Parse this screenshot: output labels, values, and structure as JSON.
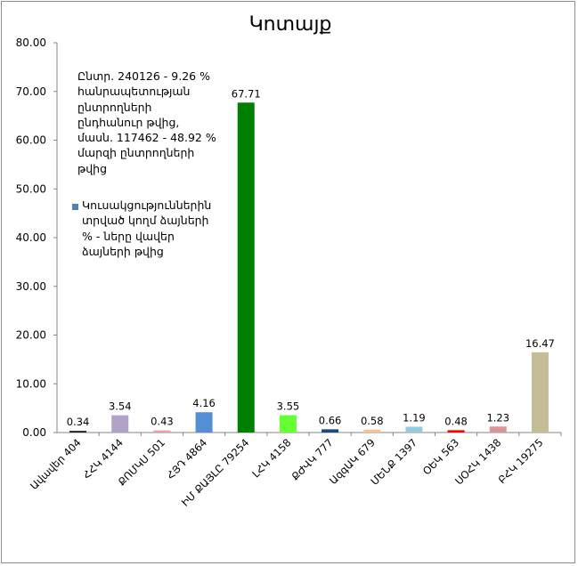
{
  "chart_data": {
    "type": "bar",
    "title": "Կոտայք",
    "categories": [
      "Ավավեր 404",
      "ՀՀԿ 4144",
      "ՔՈՄԿՍ 501",
      "ՀՅԴ 4864",
      "ԻՄ ՔԱՅԼԸ 79254",
      "ԼՀԿ 4158",
      "ՔԺՎԿ 777",
      "ԱզգԱԿ 679",
      "ՄԵՆՔ 1397",
      "ՕԵԿ 563",
      "ՍՕՀԿ 1438",
      "ԲՀԿ 19275"
    ],
    "values": [
      0.34,
      3.54,
      0.43,
      4.16,
      67.71,
      3.55,
      0.66,
      0.58,
      1.19,
      0.48,
      1.23,
      16.47
    ],
    "data_labels": [
      "0.34",
      "3.54",
      "0.43",
      "4.16",
      "67.71",
      "3.55",
      "0.66",
      "0.58",
      "1.19",
      "0.48",
      "1.23",
      "16.47"
    ],
    "colors": [
      "#1f1f1f",
      "#b3a2c7",
      "#e6a3a3",
      "#558ed5",
      "#008000",
      "#66ff33",
      "#1f497d",
      "#fac090",
      "#93cddd",
      "#ff0000",
      "#d99694",
      "#c4bd97"
    ],
    "ylim": [
      0,
      80
    ],
    "yticks": [
      "0.00",
      "10.00",
      "20.00",
      "30.00",
      "40.00",
      "50.00",
      "60.00",
      "70.00",
      "80.00"
    ],
    "xlabel": "",
    "ylabel": "",
    "grid": false,
    "legend": {
      "position": "top-left",
      "note": "Ընտր. 240126 - 9.26 %\nհանրապետության\nընտրողների\nընդհանուր թվից,\nմասն. 117462 - 48.92 %\nմարզի ընտրողների\nթվից",
      "entries": [
        {
          "name": "Կուսակցություններին\nտրված կողմ ձայների\n% - ները վավեր\nձայների թվից",
          "color": "#4f81bd"
        }
      ]
    }
  }
}
